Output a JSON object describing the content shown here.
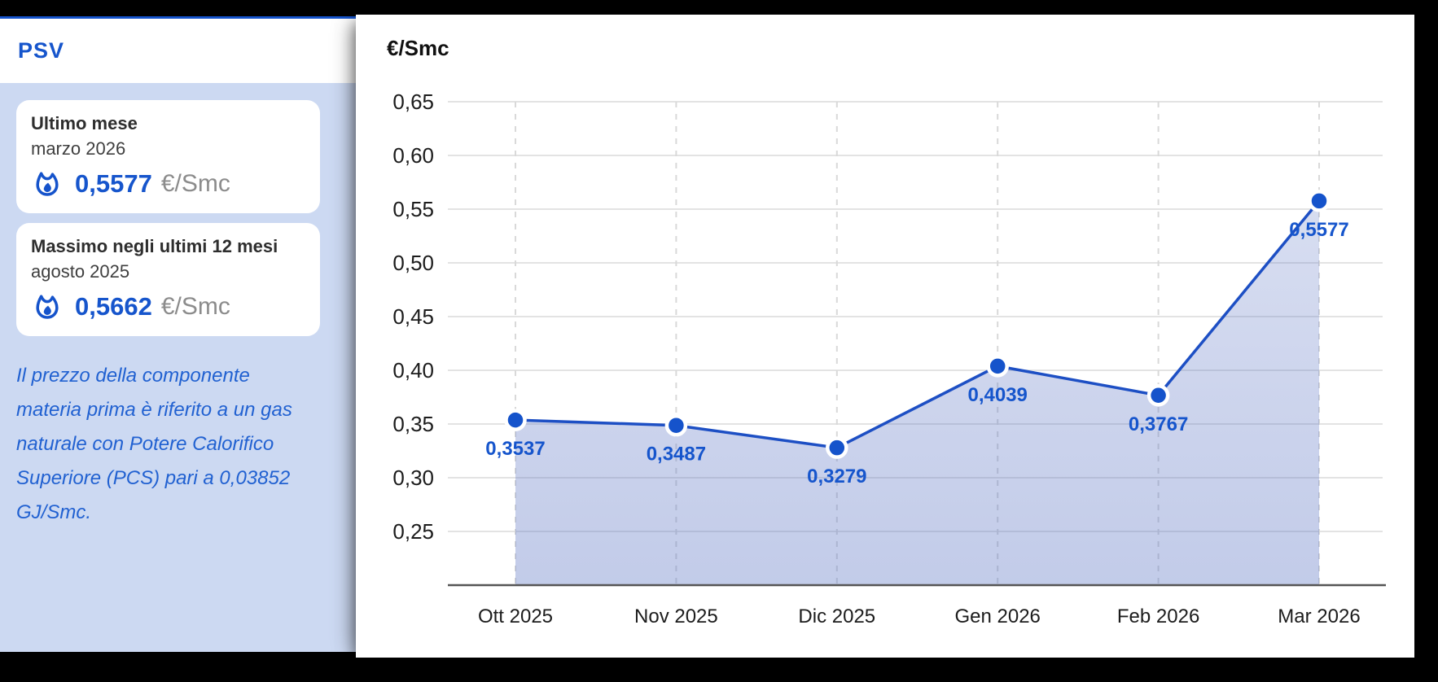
{
  "page": {
    "background": "#000000",
    "accent_line_color": "#1553cb"
  },
  "sidebar": {
    "title": "PSV",
    "panel_color": "#ccd9f2",
    "cards": [
      {
        "title": "Ultimo mese",
        "subtitle": "marzo 2026",
        "value": "0,5577",
        "unit": "€/Smc",
        "icon": "gas-flame-icon"
      },
      {
        "title": "Massimo negli ultimi 12 mesi",
        "subtitle": "agosto 2025",
        "value": "0,5662",
        "unit": "€/Smc",
        "icon": "gas-flame-icon"
      }
    ],
    "note": "Il prezzo della componente materia prima è riferito a un gas naturale con Potere Calorifico Superiore (PCS) pari a 0,03852 GJ/Smc."
  },
  "chart_data": {
    "type": "area",
    "title": "€/Smc",
    "categories": [
      "Ott 2025",
      "Nov 2025",
      "Dic 2025",
      "Gen 2026",
      "Feb 2026",
      "Mar 2026"
    ],
    "values": [
      0.3537,
      0.3487,
      0.3279,
      0.4039,
      0.3767,
      0.5577
    ],
    "point_labels": [
      "0,3537",
      "0,3487",
      "0,3279",
      "0,4039",
      "0,3767",
      "0,5577"
    ],
    "y_ticks": [
      0.65,
      0.6,
      0.55,
      0.5,
      0.45,
      0.4,
      0.35,
      0.3,
      0.25
    ],
    "y_tick_labels": [
      "0,65",
      "0,60",
      "0,55",
      "0,50",
      "0,45",
      "0,40",
      "0,35",
      "0,30",
      "0,25"
    ],
    "ylim": [
      0.25,
      0.65
    ],
    "grid": {
      "horizontal": "solid",
      "vertical": "dashed"
    },
    "legend": "none",
    "colors": {
      "line": "#1d4fc4",
      "point_fill": "#1553cb",
      "point_ring": "#ffffff",
      "point_label": "#1655cc",
      "area_top": "rgba(90,115,195,0.24)",
      "area_bottom": "rgba(90,115,195,0.37)",
      "grid_solid": "#e3e3e3",
      "grid_dashed": "#d9d9d9",
      "axis": "#555555",
      "tick_text": "#1c1c1c"
    }
  }
}
